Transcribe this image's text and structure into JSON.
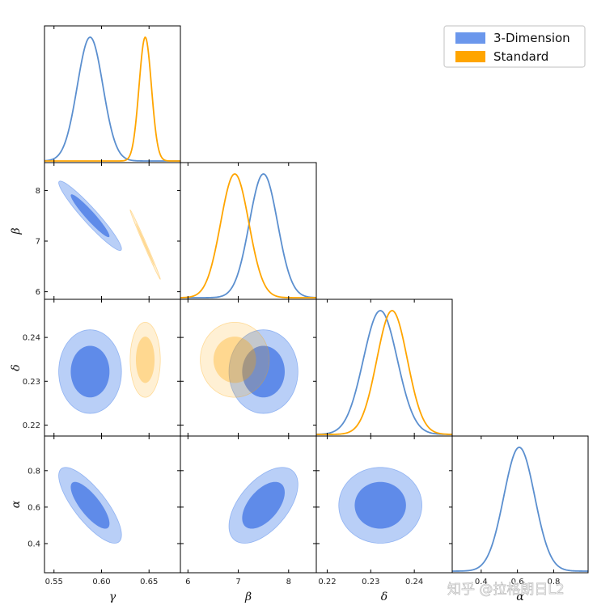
{
  "chart_data": {
    "type": "corner",
    "parameters": [
      {
        "key": "gamma",
        "label": "γ",
        "range": [
          0.54,
          0.683
        ],
        "ticks": [
          0.55,
          0.6,
          0.65
        ],
        "tick_labels": [
          "0.55",
          "0.60",
          "0.65"
        ]
      },
      {
        "key": "beta",
        "label": "β",
        "range": [
          5.85,
          8.55
        ],
        "ticks": [
          6,
          7,
          8
        ],
        "tick_labels": [
          "6",
          "7",
          "8"
        ]
      },
      {
        "key": "delta",
        "label": "δ",
        "range": [
          0.2175,
          0.2487
        ],
        "ticks": [
          0.22,
          0.23,
          0.24
        ],
        "tick_labels": [
          "0.22",
          "0.23",
          "0.24"
        ]
      },
      {
        "key": "alpha",
        "label": "α",
        "range": [
          0.24,
          0.99
        ],
        "ticks": [
          0.4,
          0.6,
          0.8
        ],
        "tick_labels": [
          "0.4",
          "0.6",
          "0.8"
        ]
      }
    ],
    "series": [
      {
        "name": "3-Dimension",
        "color": "#6495ED",
        "mean": {
          "gamma": 0.588,
          "beta": 7.5,
          "delta": 0.2322,
          "alpha": 0.61
        },
        "sigma": {
          "gamma": 0.0135,
          "beta": 0.28,
          "delta": 0.0039,
          "alpha": 0.085
        },
        "correlation": {
          "gamma-beta": -0.95,
          "gamma-delta": 0.0,
          "gamma-alpha": -0.78,
          "beta-delta": 0.0,
          "beta-alpha": 0.55,
          "delta-alpha": 0.0
        }
      },
      {
        "name": "Standard",
        "color": "#FFA500",
        "mean": {
          "gamma": 0.646,
          "beta": 6.93,
          "delta": 0.2349
        },
        "sigma": {
          "gamma": 0.0065,
          "beta": 0.28,
          "delta": 0.0035
        },
        "correlation": {
          "gamma-beta": -0.995,
          "gamma-delta": 0.0,
          "beta-delta": 0.0
        }
      }
    ],
    "contour_levels": [
      "68%",
      "95%"
    ],
    "legend_position": "top-right"
  },
  "watermark": "知乎 @拉格朗日L2"
}
